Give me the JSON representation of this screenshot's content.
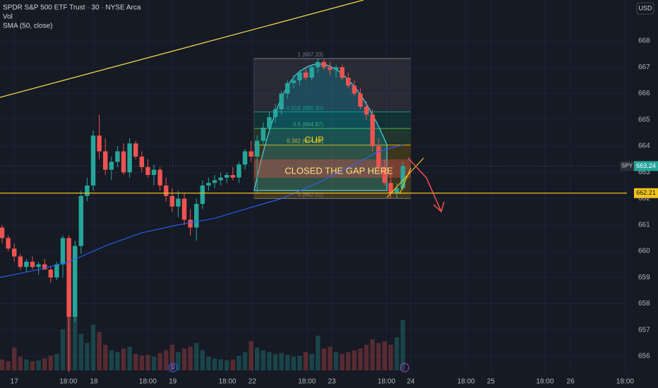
{
  "chart_data": {
    "type": "candlestick",
    "title": "SPDR S&P 500 ETF Trust · 30 · NYSE Arca",
    "currency": "USD",
    "up_color": "#26a69a",
    "down_color": "#ef5350",
    "candles": [
      [
        660.9,
        661.0,
        660.3,
        660.5
      ],
      [
        660.5,
        660.6,
        660.0,
        660.1
      ],
      [
        660.1,
        660.3,
        659.6,
        659.8
      ],
      [
        659.8,
        659.9,
        659.3,
        659.4
      ],
      [
        659.4,
        659.7,
        659.2,
        659.6
      ],
      [
        659.6,
        659.8,
        659.3,
        659.4
      ],
      [
        659.4,
        659.6,
        659.1,
        659.5
      ],
      [
        659.5,
        659.7,
        659.3,
        659.3
      ],
      [
        659.3,
        659.4,
        658.8,
        659.0
      ],
      [
        659.0,
        659.6,
        658.9,
        659.5
      ],
      [
        659.5,
        660.6,
        659.0,
        660.5
      ],
      [
        660.5,
        660.6,
        655.4,
        657.5
      ],
      [
        657.5,
        660.4,
        657.3,
        660.2
      ],
      [
        660.2,
        662.3,
        659.9,
        662.1
      ],
      [
        662.1,
        662.8,
        661.9,
        662.5
      ],
      [
        662.5,
        664.6,
        662.3,
        664.4
      ],
      [
        664.4,
        665.2,
        663.5,
        663.8
      ],
      [
        663.8,
        664.3,
        662.9,
        663.1
      ],
      [
        663.1,
        663.6,
        662.7,
        663.4
      ],
      [
        663.4,
        664.0,
        663.2,
        663.8
      ],
      [
        663.8,
        664.1,
        662.9,
        663.0
      ],
      [
        663.0,
        664.3,
        662.8,
        664.1
      ],
      [
        664.1,
        664.2,
        663.5,
        663.6
      ],
      [
        663.6,
        663.8,
        663.0,
        663.2
      ],
      [
        663.2,
        663.5,
        662.8,
        662.9
      ],
      [
        662.9,
        663.3,
        662.5,
        663.1
      ],
      [
        663.1,
        663.2,
        662.3,
        662.5
      ],
      [
        662.5,
        662.8,
        661.9,
        662.1
      ],
      [
        662.1,
        662.4,
        661.5,
        661.7
      ],
      [
        661.7,
        662.3,
        661.3,
        662.0
      ],
      [
        662.0,
        662.2,
        661.0,
        661.2
      ],
      [
        661.2,
        661.6,
        660.6,
        660.9
      ],
      [
        660.9,
        662.0,
        660.4,
        661.8
      ],
      [
        661.8,
        662.7,
        661.6,
        662.5
      ],
      [
        662.5,
        662.8,
        662.3,
        662.6
      ],
      [
        662.6,
        662.9,
        662.4,
        662.7
      ],
      [
        662.7,
        663.0,
        662.5,
        662.8
      ],
      [
        662.8,
        663.0,
        662.6,
        662.9
      ],
      [
        662.9,
        663.2,
        662.7,
        662.8
      ],
      [
        662.8,
        663.4,
        662.6,
        663.3
      ],
      [
        663.3,
        663.9,
        663.1,
        663.8
      ],
      [
        663.8,
        664.2,
        663.4,
        663.6
      ],
      [
        663.6,
        664.4,
        662.2,
        664.2
      ],
      [
        664.2,
        664.9,
        664.0,
        664.7
      ],
      [
        664.7,
        665.3,
        664.5,
        665.1
      ],
      [
        665.1,
        665.6,
        664.9,
        665.4
      ],
      [
        665.4,
        666.1,
        665.2,
        666.0
      ],
      [
        666.0,
        666.5,
        665.8,
        666.4
      ],
      [
        666.4,
        666.7,
        666.2,
        666.5
      ],
      [
        666.5,
        666.9,
        666.3,
        666.8
      ],
      [
        666.8,
        667.0,
        666.5,
        666.6
      ],
      [
        666.6,
        667.1,
        666.5,
        667.0
      ],
      [
        667.0,
        667.33,
        666.8,
        667.2
      ],
      [
        667.2,
        667.3,
        666.9,
        667.0
      ],
      [
        667.0,
        667.2,
        666.7,
        666.9
      ],
      [
        666.9,
        667.1,
        666.6,
        667.0
      ],
      [
        667.0,
        667.1,
        666.5,
        666.6
      ],
      [
        666.6,
        666.8,
        666.2,
        666.3
      ],
      [
        666.3,
        666.5,
        665.9,
        666.0
      ],
      [
        666.0,
        666.2,
        665.4,
        665.5
      ],
      [
        665.5,
        665.7,
        665.0,
        665.2
      ],
      [
        665.2,
        665.4,
        663.8,
        664.0
      ],
      [
        664.0,
        664.3,
        663.0,
        663.2
      ],
      [
        663.2,
        663.5,
        662.5,
        662.6
      ],
      [
        662.6,
        663.0,
        662.01,
        662.2
      ],
      [
        662.2,
        662.6,
        662.01,
        662.4
      ],
      [
        662.4,
        663.4,
        662.3,
        663.24
      ]
    ],
    "volume": {
      "name": "Vol",
      "values": [
        1.2,
        1.0,
        2.5,
        1.5,
        1.2,
        1.0,
        1.1,
        1.3,
        1.6,
        1.8,
        4.5,
        8.5,
        6.0,
        4.0,
        3.0,
        5.0,
        4.2,
        2.8,
        2.2,
        2.0,
        2.4,
        2.6,
        1.8,
        1.6,
        1.7,
        1.5,
        1.9,
        2.2,
        2.8,
        2.0,
        2.4,
        2.6,
        3.0,
        2.2,
        1.5,
        1.3,
        1.2,
        1.1,
        1.2,
        1.6,
        2.0,
        3.2,
        2.5,
        2.2,
        2.0,
        1.8,
        1.9,
        1.7,
        1.5,
        1.6,
        2.0,
        1.8,
        3.8,
        2.4,
        2.6,
        2.0,
        1.8,
        2.0,
        2.2,
        2.4,
        2.8,
        3.4,
        3.0,
        3.2,
        2.8,
        3.6,
        5.5
      ]
    },
    "sma": {
      "name": "SMA (50, close)",
      "color": "#2962ff",
      "x": [
        -0.35,
        6,
        11,
        17,
        23,
        29,
        35,
        40,
        46,
        52,
        58,
        62,
        66
      ],
      "values": [
        659.0,
        659.3,
        659.6,
        660.2,
        660.7,
        661.0,
        661.25,
        661.6,
        662.0,
        662.6,
        663.3,
        663.8,
        664.05
      ]
    },
    "xlim": [
      -0.35,
      102.9
    ],
    "xticks": [
      {
        "value": 2,
        "label": "17"
      },
      {
        "value": 10.9,
        "label": "18:00"
      },
      {
        "value": 15.1,
        "label": "18"
      },
      {
        "value": 24,
        "label": "18:00"
      },
      {
        "value": 28.1,
        "label": "19"
      },
      {
        "value": 37.1,
        "label": "18:00"
      },
      {
        "value": 41.2,
        "label": "22"
      },
      {
        "value": 50.2,
        "label": "18:00"
      },
      {
        "value": 54.3,
        "label": "23"
      },
      {
        "value": 63.3,
        "label": "18:00"
      },
      {
        "value": 67.3,
        "label": "24"
      },
      {
        "value": 76.4,
        "label": "18:00"
      },
      {
        "value": 80.5,
        "label": "25"
      },
      {
        "value": 89.4,
        "label": "18:00"
      },
      {
        "value": 93.6,
        "label": "26"
      },
      {
        "value": 102.6,
        "label": "18:00"
      }
    ],
    "ylim": [
      655.33,
      669.56
    ],
    "yticks": [
      656,
      657,
      658,
      659,
      660,
      661,
      662,
      663,
      664,
      665,
      666,
      667,
      668
    ],
    "fib": {
      "x": [
        41.5,
        67.3
      ],
      "levels": [
        {
          "value": 667.33,
          "label": "1 (667.33)",
          "color": "#787b86"
        },
        {
          "value": 665.3,
          "label": "0.618 (665.30)",
          "color": "#089981"
        },
        {
          "value": 664.67,
          "label": "0.5 (664.67)",
          "color": "#4caf50"
        },
        {
          "value": 664.04,
          "label": "0.382 (664.04)",
          "color": "#f0b000"
        },
        {
          "value": 662.01,
          "label": "0 (662.01)",
          "color": "#787b86"
        }
      ]
    },
    "level": 662.21,
    "last": {
      "symbol": "SPY",
      "value": 663.24
    },
    "annotations": [
      "CUP",
      "CLOSED THE GAP HERE"
    ],
    "events": [
      "D"
    ]
  }
}
